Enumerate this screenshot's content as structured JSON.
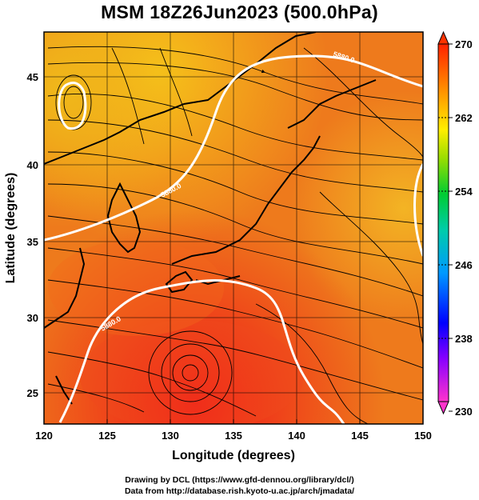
{
  "title": "MSM 18Z26Jun2023 (500.0hPa)",
  "axes": {
    "xlabel": "Longitude (degrees)",
    "ylabel": "Latitude  (degrees)",
    "x_ticks": [
      "120",
      "125",
      "130",
      "135",
      "140",
      "145",
      "150"
    ],
    "y_ticks": [
      "25",
      "30",
      "35",
      "40",
      "45"
    ]
  },
  "colorbar": {
    "labels": [
      "270",
      "262",
      "254",
      "246",
      "238",
      "230"
    ],
    "min": 230,
    "max": 270
  },
  "contour_labels": [
    "5880.0",
    "5880.0",
    "5880.0"
  ],
  "footer": {
    "line1": "Drawing by DCL (https://www.gfd-dennou.org/library/dcl/)",
    "line2": "Data from http://database.rish.kyoto-u.ac.jp/arch/jmadata/"
  },
  "map_data": {
    "extent_lon": [
      120,
      150
    ],
    "extent_lat": [
      23,
      48
    ],
    "field": "500hPa temperature (K) shading with streamlines, 5880 m height contour (white)"
  }
}
